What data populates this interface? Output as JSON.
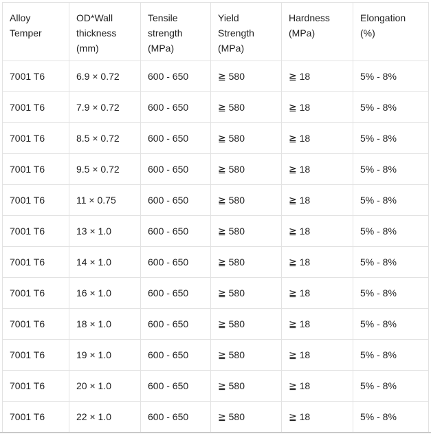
{
  "colors": {
    "border": "#e2e2e2",
    "divider": "#c9c9c9",
    "text": "#1f1f1f",
    "background": "#ffffff"
  },
  "table": {
    "columns": [
      {
        "id": "alloy-temper",
        "label": "Alloy Temper"
      },
      {
        "id": "od-wall-thickness",
        "label": "OD*Wall thickness (mm)"
      },
      {
        "id": "tensile-strength",
        "label": "Tensile strength (MPa)"
      },
      {
        "id": "yield-strength",
        "label": "Yield Strength (MPa)"
      },
      {
        "id": "hardness",
        "label": "Hardness (MPa)"
      },
      {
        "id": "elongation",
        "label": "Elongation (%)"
      }
    ],
    "rows": [
      [
        "7001 T6",
        "6.9 × 0.72",
        "600 - 650",
        "≧ 580",
        "≧ 18",
        "5% - 8%"
      ],
      [
        "7001 T6",
        "7.9 × 0.72",
        "600 - 650",
        "≧ 580",
        "≧ 18",
        "5% - 8%"
      ],
      [
        "7001 T6",
        "8.5 × 0.72",
        "600 - 650",
        "≧ 580",
        "≧ 18",
        "5% - 8%"
      ],
      [
        "7001 T6",
        "9.5 × 0.72",
        "600 - 650",
        "≧ 580",
        "≧ 18",
        "5% - 8%"
      ],
      [
        "7001 T6",
        "11 × 0.75",
        "600 - 650",
        "≧ 580",
        "≧ 18",
        "5% - 8%"
      ],
      [
        "7001 T6",
        "13 × 1.0",
        "600 - 650",
        "≧ 580",
        "≧ 18",
        "5% - 8%"
      ],
      [
        "7001 T6",
        "14 × 1.0",
        "600 - 650",
        "≧ 580",
        "≧ 18",
        "5% - 8%"
      ],
      [
        "7001 T6",
        "16 × 1.0",
        "600 - 650",
        "≧ 580",
        "≧ 18",
        "5% - 8%"
      ],
      [
        "7001 T6",
        "18 × 1.0",
        "600 - 650",
        "≧ 580",
        "≧ 18",
        "5% - 8%"
      ],
      [
        "7001 T6",
        "19 × 1.0",
        "600 - 650",
        "≧ 580",
        "≧ 18",
        "5% - 8%"
      ],
      [
        "7001 T6",
        "20 × 1.0",
        "600 - 650",
        "≧ 580",
        "≧ 18",
        "5% - 8%"
      ],
      [
        "7001 T6",
        "22 × 1.0",
        "600 - 650",
        "≧ 580",
        "≧ 18",
        "5% - 8%"
      ]
    ]
  }
}
